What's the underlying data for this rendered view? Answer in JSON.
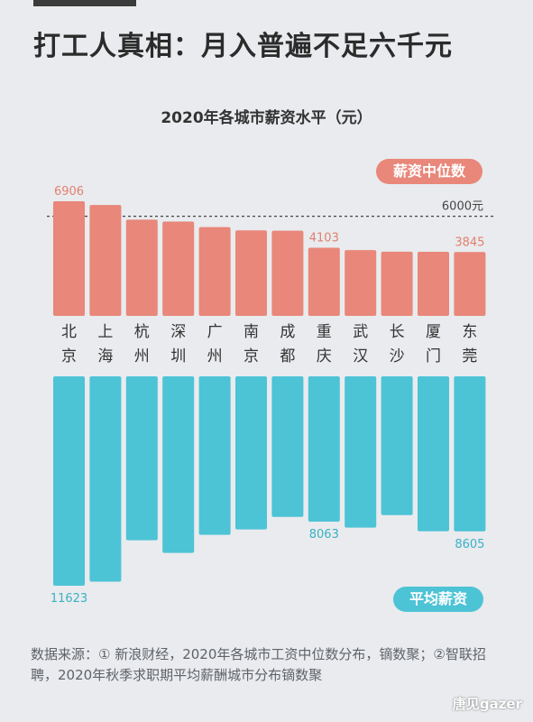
{
  "headline": "打工人真相：月入普遍不足六千元",
  "watermark": "唐见gazer",
  "source_note": "数据来源：① 新浪财经，2020年各城市工资中位数分布，镝数聚；②智联招聘，2020年秋季求职期平均薪酬城市分布镝数聚",
  "colors": {
    "median": "#e8877a",
    "mean": "#4dc3d6",
    "label_median": "#e2806f",
    "label_mean": "#3ab1c4",
    "accent": "#3b3b3b"
  },
  "chart_data": {
    "type": "bar",
    "title": "2020年各城市薪资水平（元）",
    "categories": [
      [
        "北",
        "京"
      ],
      [
        "上",
        "海"
      ],
      [
        "杭",
        "州"
      ],
      [
        "深",
        "圳"
      ],
      [
        "广",
        "州"
      ],
      [
        "南",
        "京"
      ],
      [
        "成",
        "都"
      ],
      [
        "重",
        "庆"
      ],
      [
        "武",
        "汉"
      ],
      [
        "长",
        "沙"
      ],
      [
        "厦",
        "门"
      ],
      [
        "东",
        "莞"
      ]
    ],
    "series": [
      {
        "name": "薪资中位数",
        "values": [
          6906,
          6680,
          5800,
          5680,
          5350,
          5150,
          5130,
          4103,
          3960,
          3870,
          3860,
          3845
        ],
        "data_labels": [
          "6906",
          "",
          "",
          "",
          "",
          "",
          "",
          "4103",
          "",
          "",
          "",
          "3845"
        ]
      },
      {
        "name": "平均薪资",
        "values": [
          11623,
          11400,
          9100,
          9800,
          8800,
          8500,
          7800,
          8063,
          8400,
          7700,
          8600,
          8605
        ],
        "data_labels": [
          "11623",
          "",
          "",
          "",
          "",
          "",
          "",
          "8063",
          "",
          "",
          "",
          "8605"
        ]
      }
    ],
    "reference_line": {
      "value": 6000,
      "label": "6000元"
    },
    "grid": false,
    "legend": "top-right / bottom-right"
  }
}
